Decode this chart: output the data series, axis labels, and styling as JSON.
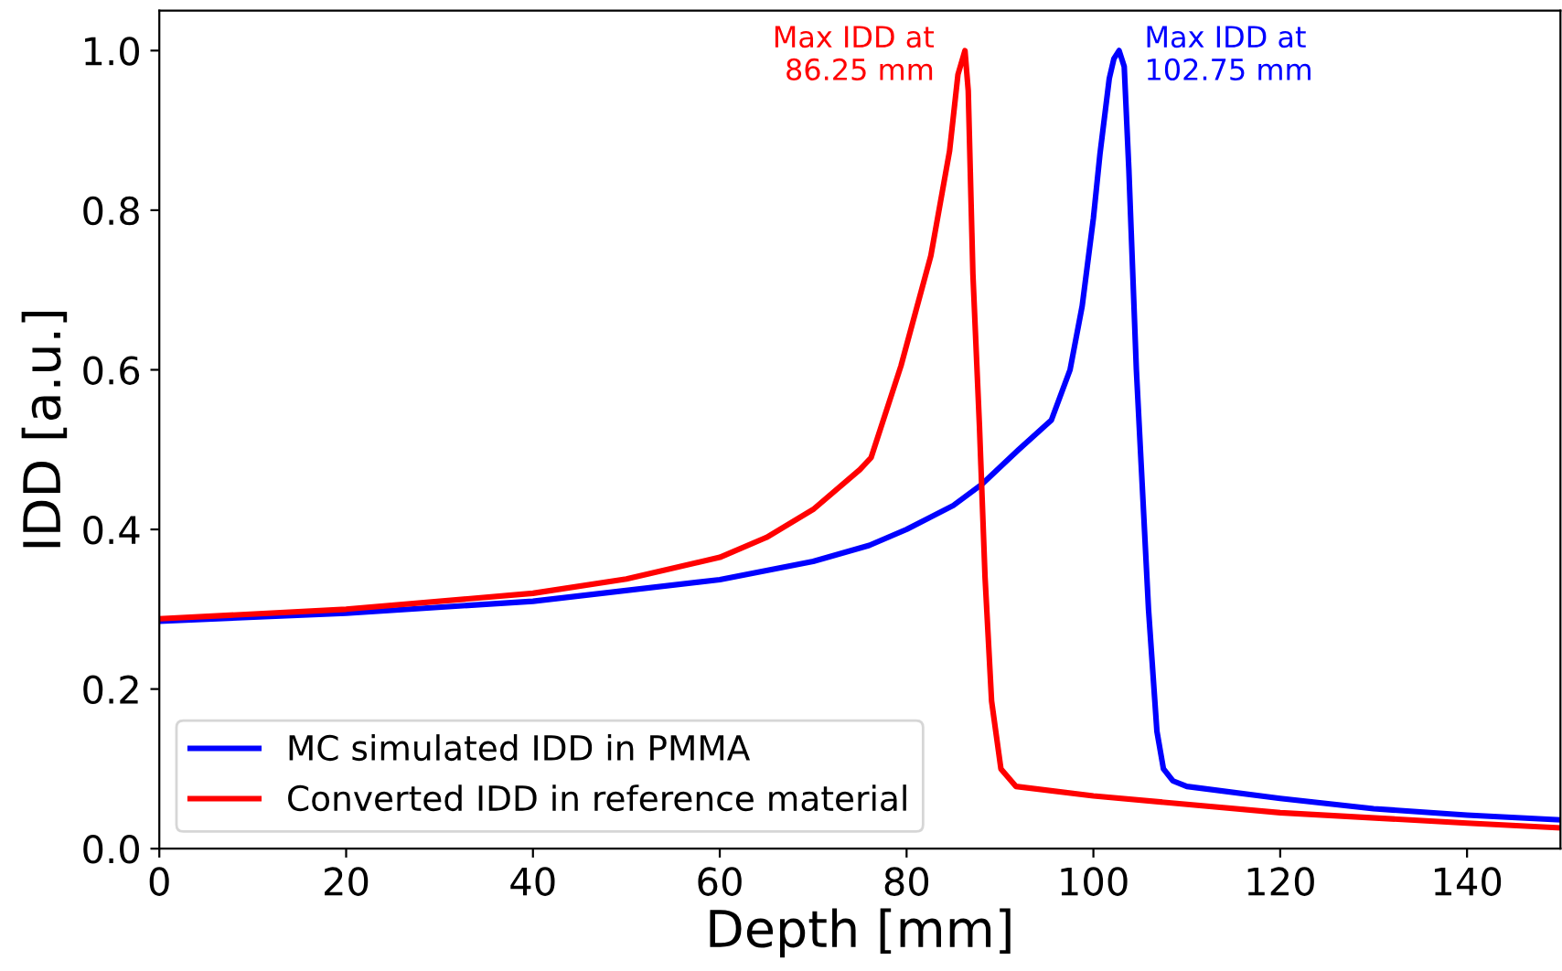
{
  "chart_data": {
    "type": "line",
    "xlabel": "Depth [mm]",
    "ylabel": "IDD [a.u.]",
    "xlim": [
      0,
      150
    ],
    "ylim": [
      0,
      1.05
    ],
    "xticks": [
      0,
      20,
      40,
      60,
      80,
      100,
      120,
      140
    ],
    "yticks": [
      {
        "value": 0,
        "label": "0.0"
      },
      0.2,
      0.4,
      0.6,
      0.8,
      {
        "value": 1,
        "label": "1.0"
      }
    ],
    "grid": false,
    "legend": "bottom left",
    "marker": "none",
    "line_style": "solid",
    "series": [
      {
        "name": "MC simulated IDD in PMMA",
        "color": "#0000ff",
        "x": [
          0,
          20,
          40,
          60,
          70,
          76,
          80,
          85,
          88,
          92,
          95.5,
          97.5,
          98.8,
          100,
          100.7,
          101.7,
          102.2,
          102.75,
          103.3,
          103.8,
          104.6,
          105.9,
          106.8,
          107.5,
          108.5,
          110,
          120,
          130,
          140,
          150
        ],
        "values": [
          0.285,
          0.295,
          0.31,
          0.337,
          0.36,
          0.38,
          0.4,
          0.43,
          0.456,
          0.5,
          0.537,
          0.6,
          0.68,
          0.79,
          0.87,
          0.965,
          0.99,
          1.0,
          0.98,
          0.85,
          0.6,
          0.3,
          0.147,
          0.1,
          0.085,
          0.078,
          0.063,
          0.05,
          0.042,
          0.036
        ]
      },
      {
        "name": "Converted IDD in reference material",
        "color": "#ff0000",
        "x": [
          0,
          20,
          40,
          50,
          60,
          65,
          70,
          75,
          76.2,
          79.4,
          82.6,
          84.6,
          85.5,
          86.25,
          86.6,
          87.1,
          87.8,
          88.4,
          89.1,
          90.1,
          91.7,
          100,
          120,
          140,
          150
        ],
        "values": [
          0.288,
          0.3,
          0.32,
          0.338,
          0.365,
          0.39,
          0.425,
          0.475,
          0.49,
          0.605,
          0.743,
          0.874,
          0.97,
          1.0,
          0.95,
          0.72,
          0.53,
          0.34,
          0.185,
          0.1,
          0.078,
          0.066,
          0.045,
          0.032,
          0.026
        ]
      }
    ],
    "annotations": [
      {
        "text": "Max IDD at\n86.25 mm",
        "x": 86.25,
        "y": 1.0
      },
      {
        "text": "Max IDD at\n102.75 mm",
        "x": 102.75,
        "y": 1.0
      }
    ]
  }
}
